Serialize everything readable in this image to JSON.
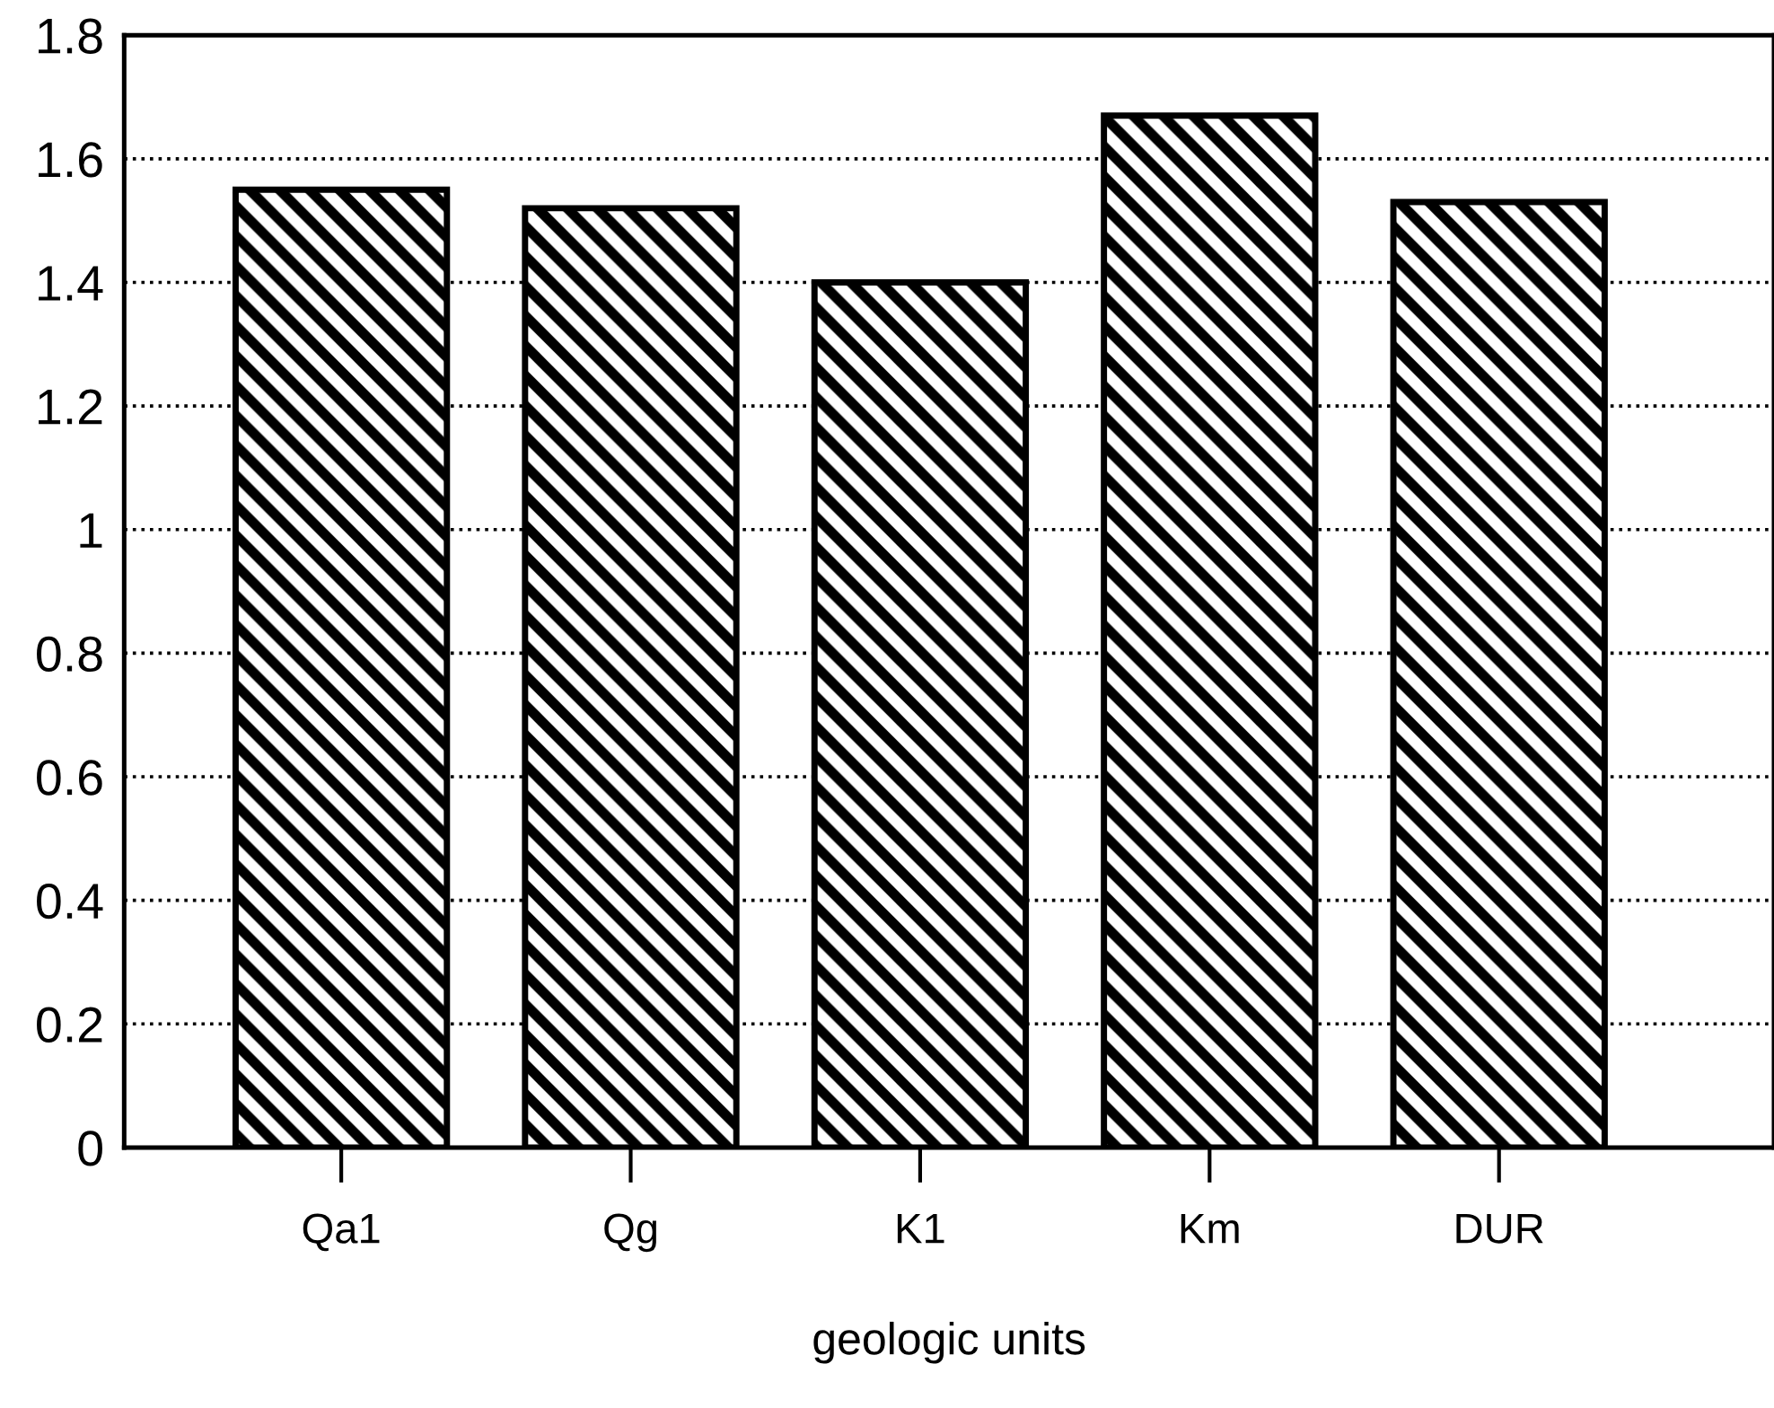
{
  "chart_data": {
    "type": "bar",
    "xlabel": "geologic units",
    "categories": [
      "Qa1",
      "Qg",
      "K1",
      "Km",
      "DUR"
    ],
    "values": [
      1.55,
      1.52,
      1.4,
      1.67,
      1.53
    ],
    "color": "#000000",
    "ylim": [
      0,
      1.8
    ],
    "yticks": [
      0,
      0.2,
      0.4,
      0.6,
      0.8,
      1,
      1.2,
      1.4,
      1.6,
      1.8
    ],
    "grid": "y",
    "line_style": "dotted"
  }
}
